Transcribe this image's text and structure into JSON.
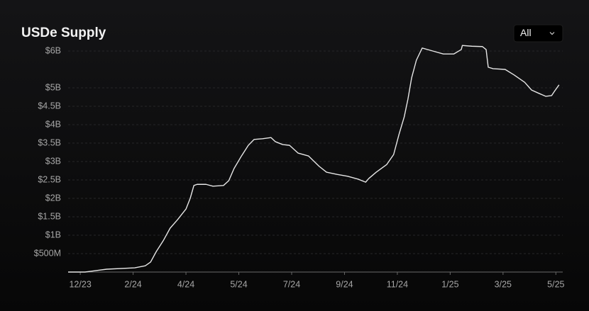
{
  "chart_data": {
    "type": "line",
    "title": "USDe Supply",
    "filter": "All",
    "color": "#e6e6e6",
    "grid": true,
    "x": [
      -0.23,
      0.09,
      0.5,
      1.03,
      1.23,
      1.33,
      1.44,
      1.57,
      1.7,
      1.84,
      2.0,
      2.08,
      2.15,
      2.21,
      2.38,
      2.51,
      2.71,
      2.81,
      2.91,
      3.05,
      3.18,
      3.29,
      3.45,
      3.61,
      3.69,
      3.83,
      3.96,
      4.12,
      4.32,
      4.52,
      4.66,
      4.86,
      5.06,
      5.26,
      5.4,
      5.46,
      5.6,
      5.8,
      5.93,
      6.03,
      6.13,
      6.2,
      6.27,
      6.36,
      6.47,
      6.67,
      6.87,
      7.07,
      7.21,
      7.23,
      7.41,
      7.61,
      7.68,
      7.72,
      7.81,
      8.04,
      8.21,
      8.41,
      8.54,
      8.68,
      8.81,
      8.92,
      8.98,
      9.06
    ],
    "values": [
      0,
      0,
      77000000,
      115000000,
      170000000,
      270000000,
      560000000,
      850000000,
      1190000000,
      1420000000,
      1710000000,
      2000000000,
      2350000000,
      2380000000,
      2380000000,
      2330000000,
      2350000000,
      2480000000,
      2810000000,
      3150000000,
      3440000000,
      3600000000,
      3620000000,
      3650000000,
      3540000000,
      3460000000,
      3440000000,
      3230000000,
      3150000000,
      2870000000,
      2710000000,
      2650000000,
      2600000000,
      2520000000,
      2440000000,
      2540000000,
      2710000000,
      2920000000,
      3190000000,
      3730000000,
      4210000000,
      4690000000,
      5270000000,
      5750000000,
      6080000000,
      6000000000,
      5920000000,
      5920000000,
      6040000000,
      6150000000,
      6130000000,
      6120000000,
      6040000000,
      5560000000,
      5520000000,
      5500000000,
      5350000000,
      5150000000,
      4940000000,
      4850000000,
      4770000000,
      4790000000,
      4920000000,
      5080000000
    ],
    "xlim": [
      -0.23,
      9.13
    ],
    "xticks": [
      {
        "value": 0,
        "label": "12/23"
      },
      {
        "value": 1,
        "label": "2/24"
      },
      {
        "value": 2,
        "label": "4/24"
      },
      {
        "value": 3,
        "label": "5/24"
      },
      {
        "value": 4,
        "label": "7/24"
      },
      {
        "value": 5,
        "label": "9/24"
      },
      {
        "value": 6,
        "label": "11/24"
      },
      {
        "value": 7,
        "label": "1/25"
      },
      {
        "value": 8,
        "label": "3/25"
      },
      {
        "value": 9,
        "label": "5/25"
      }
    ],
    "ylim": [
      0,
      6250000000
    ],
    "yticks": [
      {
        "value": 500000000,
        "label": "$500M"
      },
      {
        "value": 1000000000,
        "label": "$1B"
      },
      {
        "value": 1500000000,
        "label": "$1.5B"
      },
      {
        "value": 2000000000,
        "label": "$2B"
      },
      {
        "value": 2500000000,
        "label": "$2.5B"
      },
      {
        "value": 3000000000,
        "label": "$3B"
      },
      {
        "value": 3500000000,
        "label": "$3.5B"
      },
      {
        "value": 4000000000,
        "label": "$4B"
      },
      {
        "value": 4500000000,
        "label": "$4.5B"
      },
      {
        "value": 5000000000,
        "label": "$5B"
      },
      {
        "value": 6000000000,
        "label": "$6B"
      }
    ]
  }
}
